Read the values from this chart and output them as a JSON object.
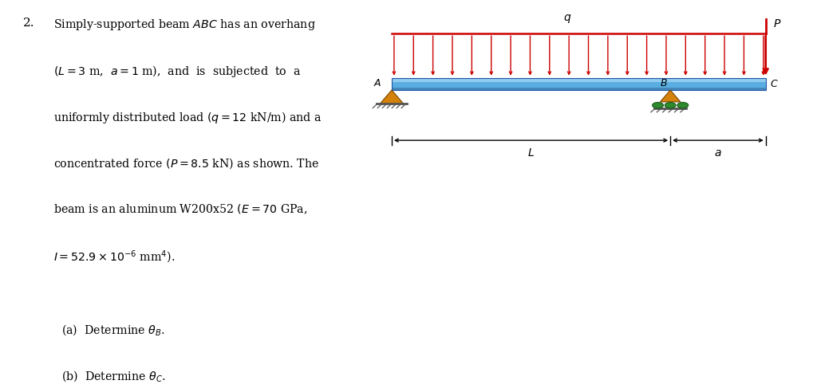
{
  "background_color": "#ffffff",
  "diagram_bg": "#f5ede0",
  "arrow_color": "#cc0000",
  "support_A_color": "#d4820a",
  "support_B_tri_color": "#d4820a",
  "support_B_roll_color": "#2d8a2d",
  "beam_color_main": "#5aaee0",
  "beam_color_light": "#a8d8f0",
  "beam_color_dark": "#3a7bbf",
  "beam_outline": "#2255aa",
  "ground_color": "#555555",
  "dim_color": "#222222",
  "text_color": "#111111"
}
